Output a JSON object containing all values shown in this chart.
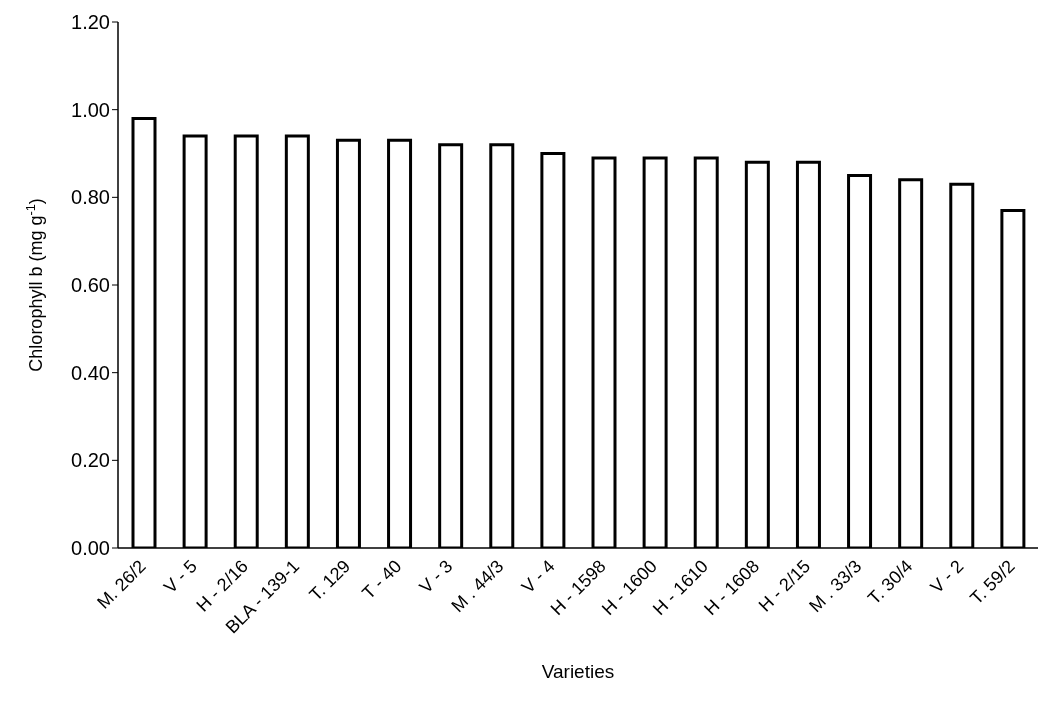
{
  "chart_data": {
    "type": "bar",
    "xlabel": "Varieties",
    "ylabel": "Chlorophyll b (mg g$^{-1}$)",
    "categories": [
      "M. 26/2",
      "V - 5",
      "H - 2/16",
      "BLA - 139-1",
      "T. 129",
      "T - 40",
      "V - 3",
      "M . 44/3",
      "V - 4",
      "H - 1598",
      "H - 1600",
      "H - 1610",
      "H - 1608",
      "H - 2/15",
      "M . 33/3",
      "T. 30/4",
      "V - 2",
      "T. 59/2"
    ],
    "values": [
      0.98,
      0.94,
      0.94,
      0.94,
      0.93,
      0.93,
      0.92,
      0.92,
      0.9,
      0.89,
      0.89,
      0.89,
      0.88,
      0.88,
      0.85,
      0.84,
      0.83,
      0.77
    ],
    "color": "#ffffff",
    "ylim": [
      0,
      1.2
    ],
    "yticks": [
      {
        "value": 0,
        "label": "0.00"
      },
      {
        "value": 0.2,
        "label": "0.20"
      },
      {
        "value": 0.4,
        "label": "0.40"
      },
      {
        "value": 0.6,
        "label": "0.60"
      },
      {
        "value": 0.8,
        "label": "0.80"
      },
      {
        "value": 1.0,
        "label": "1.00"
      },
      {
        "value": 1.2,
        "label": "1.20"
      }
    ],
    "grid": false,
    "legend": false
  }
}
